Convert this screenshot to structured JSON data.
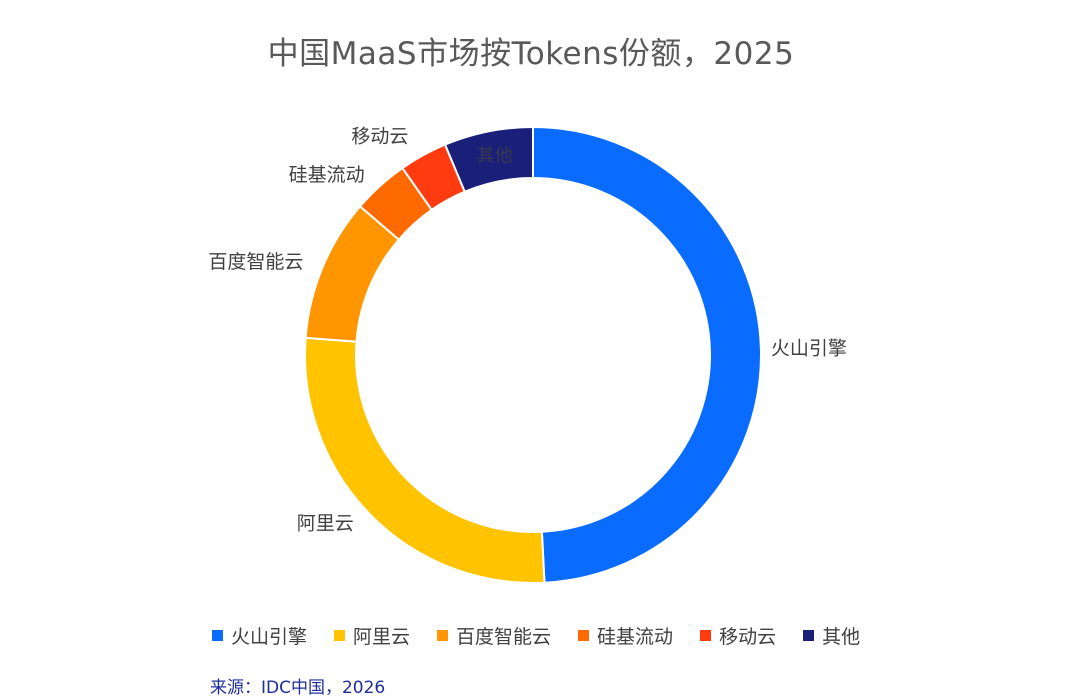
{
  "chart_data": {
    "type": "pie",
    "variant": "donut",
    "title": "中国MaaS市场按Tokens份额，2025",
    "categories": [
      "火山引擎",
      "阿里云",
      "百度智能云",
      "硅基流动",
      "移动云",
      "其他"
    ],
    "values": [
      49.2,
      27.0,
      10.1,
      4.0,
      3.4,
      6.3
    ],
    "unit": "%",
    "colors": [
      "#0a6cff",
      "#ffc300",
      "#ff9500",
      "#ff6a00",
      "#ff3b0f",
      "#1a1f7a"
    ],
    "legend_position": "bottom"
  },
  "source": "来源：IDC中国，2026"
}
